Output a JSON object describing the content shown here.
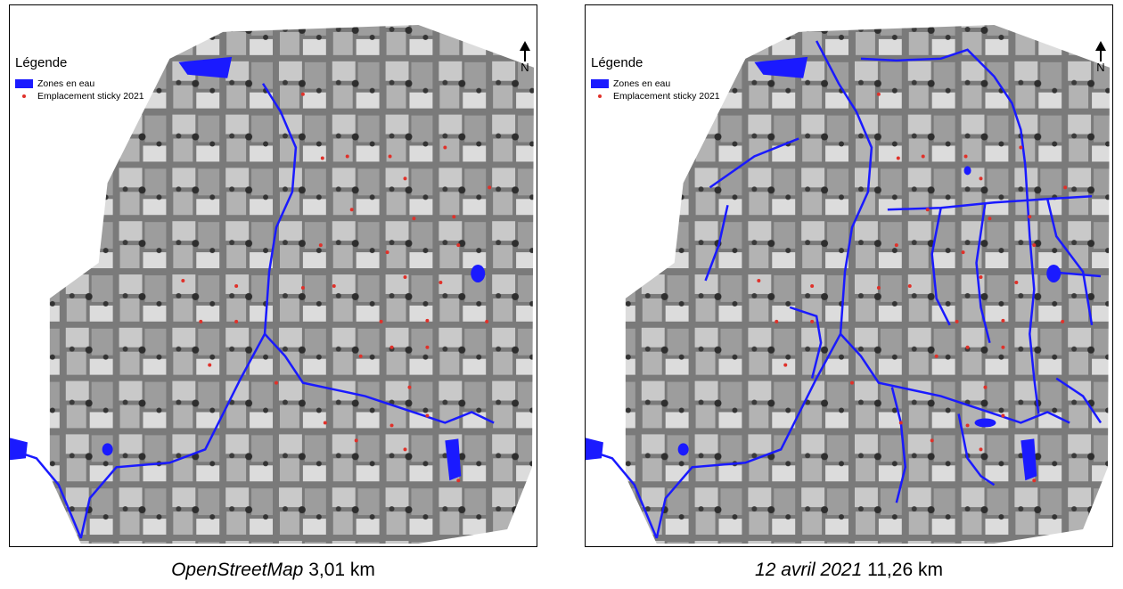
{
  "panels": [
    {
      "legend": {
        "title": "Légende",
        "items": [
          {
            "label": "Zones en eau",
            "color": "#1a1aff"
          },
          {
            "label": "Emplacement sticky 2021",
            "color": "#e0312a"
          }
        ]
      },
      "north_label": "N",
      "caption": {
        "source": "OpenStreetMap",
        "length": "3,01 km"
      }
    },
    {
      "legend": {
        "title": "Légende",
        "items": [
          {
            "label": "Zones en eau",
            "color": "#1a1aff"
          },
          {
            "label": "Emplacement sticky 2021",
            "color": "#e0312a"
          }
        ]
      },
      "north_label": "N",
      "caption": {
        "source": "12 avril 2021",
        "length": "11,26 km"
      }
    }
  ]
}
